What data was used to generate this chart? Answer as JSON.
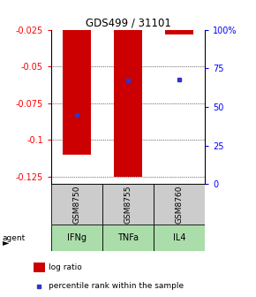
{
  "title": "GDS499 / 31101",
  "categories": [
    "GSM8750",
    "GSM8755",
    "GSM8760"
  ],
  "agents": [
    "IFNg",
    "TNFa",
    "IL4"
  ],
  "log_ratios": [
    -0.11,
    -0.125,
    -0.028
  ],
  "percentile_ranks": [
    45,
    67,
    68
  ],
  "ylim_left": [
    -0.13,
    -0.025
  ],
  "ylim_right": [
    0,
    100
  ],
  "yticks_left": [
    -0.125,
    -0.1,
    -0.075,
    -0.05,
    -0.025
  ],
  "yticks_right": [
    0,
    25,
    50,
    75,
    100
  ],
  "bar_color": "#cc0000",
  "dot_color": "#3333cc",
  "gsm_bg": "#cccccc",
  "agent_bg": "#aaddaa",
  "legend_items": [
    "log ratio",
    "percentile rank within the sample"
  ],
  "bar_width": 0.55
}
